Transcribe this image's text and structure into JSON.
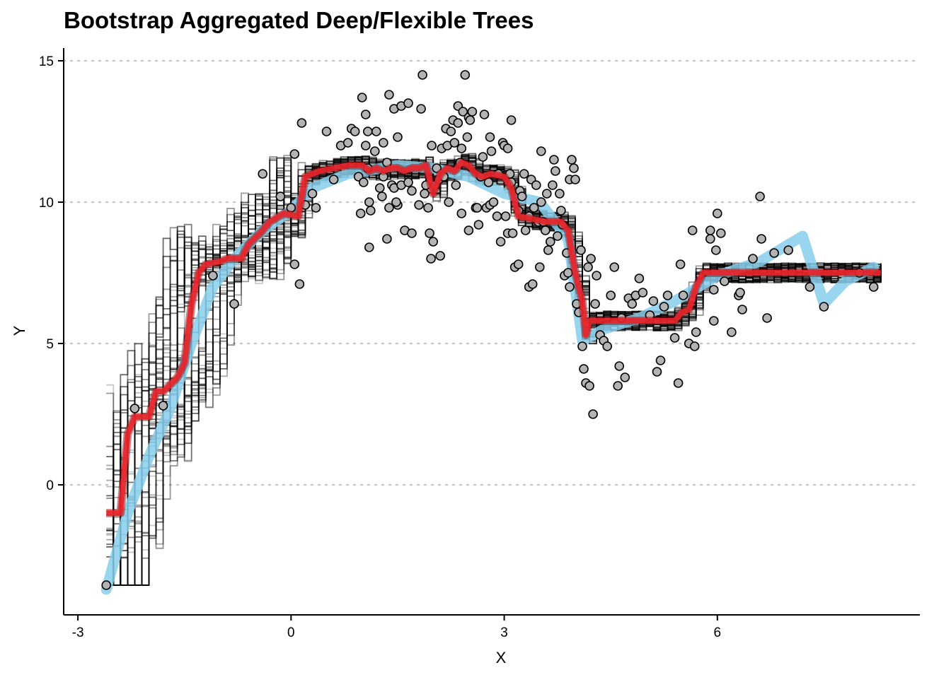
{
  "chart_data": {
    "type": "scatter",
    "title": "Bootstrap Aggregated Deep/Flexible Trees",
    "xlabel": "X",
    "ylabel": "Y",
    "xlim": [
      -3.2,
      8.85
    ],
    "ylim": [
      -4.6,
      15.45
    ],
    "x_ticks": [
      -3,
      0,
      3,
      6
    ],
    "y_ticks": [
      0,
      5,
      10,
      15
    ],
    "grid": "horizontal-dotted",
    "colors": {
      "points_fill": "#b3b3b3",
      "points_stroke": "#000000",
      "true_function": "#87ceeb",
      "bagged_mean": "#e8252b",
      "bootstrap_trees": "#000000",
      "grid": "#c8c8c8"
    },
    "bootstrap_tree_count": 50,
    "true_function_points": [
      [
        -2.6,
        -3.7
      ],
      [
        -2.3,
        -1.0
      ],
      [
        -2.0,
        1.0
      ],
      [
        -1.7,
        2.7
      ],
      [
        -1.4,
        5.0
      ],
      [
        -1.1,
        7.0
      ],
      [
        -0.8,
        8.0
      ],
      [
        -0.4,
        9.0
      ],
      [
        0.0,
        9.7
      ],
      [
        0.3,
        10.5
      ],
      [
        0.8,
        11.0
      ],
      [
        1.5,
        11.3
      ],
      [
        2.0,
        11.2
      ],
      [
        2.5,
        10.9
      ],
      [
        3.0,
        10.3
      ],
      [
        3.5,
        10.0
      ],
      [
        3.9,
        8.7
      ],
      [
        4.1,
        5.1
      ],
      [
        4.4,
        5.5
      ],
      [
        4.9,
        5.9
      ],
      [
        5.4,
        6.5
      ],
      [
        6.0,
        7.4
      ],
      [
        6.6,
        7.9
      ],
      [
        7.2,
        8.8
      ],
      [
        7.5,
        6.4
      ],
      [
        7.8,
        7.2
      ],
      [
        8.2,
        7.7
      ]
    ],
    "bagged_mean_points": [
      [
        -2.6,
        -1.0
      ],
      [
        -2.4,
        -1.0
      ],
      [
        -2.3,
        1.8
      ],
      [
        -2.2,
        2.4
      ],
      [
        -2.0,
        2.4
      ],
      [
        -1.9,
        3.3
      ],
      [
        -1.8,
        3.3
      ],
      [
        -1.6,
        3.8
      ],
      [
        -1.5,
        4.3
      ],
      [
        -1.4,
        6.4
      ],
      [
        -1.3,
        7.5
      ],
      [
        -1.2,
        7.8
      ],
      [
        -1.0,
        7.9
      ],
      [
        -0.9,
        8.0
      ],
      [
        -0.7,
        8.0
      ],
      [
        -0.6,
        8.5
      ],
      [
        -0.4,
        9.0
      ],
      [
        -0.3,
        9.3
      ],
      [
        -0.1,
        9.6
      ],
      [
        0.1,
        9.5
      ],
      [
        0.2,
        10.9
      ],
      [
        0.4,
        11.1
      ],
      [
        0.6,
        11.2
      ],
      [
        0.8,
        11.3
      ],
      [
        1.0,
        11.3
      ],
      [
        1.1,
        11.1
      ],
      [
        1.2,
        11.2
      ],
      [
        1.3,
        11.1
      ],
      [
        1.4,
        11.2
      ],
      [
        1.5,
        11.2
      ],
      [
        1.6,
        11.1
      ],
      [
        1.7,
        11.2
      ],
      [
        1.8,
        11.2
      ],
      [
        1.9,
        11.3
      ],
      [
        2.0,
        10.3
      ],
      [
        2.1,
        11.0
      ],
      [
        2.2,
        11.2
      ],
      [
        2.3,
        11.1
      ],
      [
        2.4,
        11.4
      ],
      [
        2.5,
        11.3
      ],
      [
        2.6,
        11.0
      ],
      [
        2.7,
        10.9
      ],
      [
        2.8,
        11.0
      ],
      [
        3.0,
        10.9
      ],
      [
        3.1,
        10.5
      ],
      [
        3.2,
        9.5
      ],
      [
        3.4,
        9.4
      ],
      [
        3.6,
        9.3
      ],
      [
        3.8,
        9.3
      ],
      [
        3.9,
        9.0
      ],
      [
        4.0,
        7.5
      ],
      [
        4.1,
        6.5
      ],
      [
        4.15,
        5.3
      ],
      [
        4.2,
        5.8
      ],
      [
        4.4,
        5.8
      ],
      [
        4.6,
        5.8
      ],
      [
        4.8,
        5.8
      ],
      [
        5.0,
        5.8
      ],
      [
        5.2,
        5.8
      ],
      [
        5.4,
        5.8
      ],
      [
        5.5,
        6.1
      ],
      [
        5.6,
        6.2
      ],
      [
        5.7,
        7.0
      ],
      [
        5.8,
        7.5
      ],
      [
        6.0,
        7.5
      ],
      [
        6.3,
        7.5
      ],
      [
        6.6,
        7.5
      ],
      [
        7.0,
        7.5
      ],
      [
        7.5,
        7.5
      ],
      [
        8.0,
        7.5
      ],
      [
        8.3,
        7.5
      ]
    ],
    "observations": [
      [
        -2.6,
        -3.55
      ],
      [
        -2.2,
        2.7
      ],
      [
        -1.8,
        2.8
      ],
      [
        -1.1,
        7.4
      ],
      [
        -0.8,
        6.4
      ],
      [
        -0.4,
        11.0
      ],
      [
        -0.15,
        10.2
      ],
      [
        0.05,
        11.7
      ],
      [
        0.0,
        9.8
      ],
      [
        0.05,
        7.8
      ],
      [
        0.2,
        9.9
      ],
      [
        0.3,
        10.3
      ],
      [
        0.15,
        12.8
      ],
      [
        0.12,
        7.1
      ],
      [
        0.35,
        9.8
      ],
      [
        0.5,
        12.5
      ],
      [
        0.6,
        10.8
      ],
      [
        0.7,
        12.0
      ],
      [
        0.8,
        12.1
      ],
      [
        0.85,
        12.6
      ],
      [
        0.9,
        12.5
      ],
      [
        0.95,
        10.9
      ],
      [
        0.98,
        9.6
      ],
      [
        1.0,
        13.7
      ],
      [
        1.02,
        10.7
      ],
      [
        1.05,
        13.1
      ],
      [
        1.05,
        12.0
      ],
      [
        1.08,
        12.5
      ],
      [
        1.08,
        11.2
      ],
      [
        1.1,
        10.0
      ],
      [
        1.12,
        9.7
      ],
      [
        1.1,
        8.4
      ],
      [
        1.18,
        11.8
      ],
      [
        1.2,
        12.5
      ],
      [
        1.25,
        10.5
      ],
      [
        1.28,
        10.2
      ],
      [
        1.3,
        12.1
      ],
      [
        1.3,
        10.9
      ],
      [
        1.35,
        11.4
      ],
      [
        1.38,
        9.8
      ],
      [
        1.42,
        10.6
      ],
      [
        1.45,
        10.5
      ],
      [
        1.35,
        8.7
      ],
      [
        1.38,
        13.8
      ],
      [
        1.45,
        13.3
      ],
      [
        1.5,
        12.3
      ],
      [
        1.55,
        10.6
      ],
      [
        1.55,
        13.4
      ],
      [
        1.5,
        9.9
      ],
      [
        1.48,
        10.0
      ],
      [
        1.6,
        9.0
      ],
      [
        1.65,
        13.5
      ],
      [
        1.65,
        10.7
      ],
      [
        1.7,
        10.4
      ],
      [
        1.7,
        8.9
      ],
      [
        1.8,
        9.9
      ],
      [
        1.83,
        13.3
      ],
      [
        1.85,
        14.5
      ],
      [
        1.88,
        10.3
      ],
      [
        1.9,
        10.6
      ],
      [
        1.93,
        9.8
      ],
      [
        1.95,
        8.9
      ],
      [
        1.97,
        8.0
      ],
      [
        1.98,
        12.0
      ],
      [
        2.0,
        8.6
      ],
      [
        2.02,
        10.6
      ],
      [
        2.05,
        11.2
      ],
      [
        2.08,
        10.8
      ],
      [
        2.1,
        8.1
      ],
      [
        2.12,
        11.9
      ],
      [
        2.15,
        10.9
      ],
      [
        2.18,
        12.6
      ],
      [
        2.2,
        12.0
      ],
      [
        2.22,
        10.0
      ],
      [
        2.25,
        12.5
      ],
      [
        2.28,
        12.9
      ],
      [
        2.3,
        12.1
      ],
      [
        2.32,
        10.6
      ],
      [
        2.35,
        13.4
      ],
      [
        2.35,
        12.8
      ],
      [
        2.38,
        11.4
      ],
      [
        2.4,
        9.6
      ],
      [
        2.4,
        11.9
      ],
      [
        2.42,
        13.2
      ],
      [
        2.45,
        14.5
      ],
      [
        2.48,
        12.3
      ],
      [
        2.5,
        13.0
      ],
      [
        2.52,
        12.9
      ],
      [
        2.5,
        9.0
      ],
      [
        2.55,
        13.2
      ],
      [
        2.6,
        9.8
      ],
      [
        2.62,
        9.8
      ],
      [
        2.64,
        9.2
      ],
      [
        2.67,
        10.9
      ],
      [
        2.7,
        11.6
      ],
      [
        2.72,
        13.1
      ],
      [
        2.75,
        9.8
      ],
      [
        2.78,
        10.7
      ],
      [
        2.8,
        9.9
      ],
      [
        2.8,
        12.3
      ],
      [
        2.82,
        11.8
      ],
      [
        2.85,
        10.0
      ],
      [
        2.9,
        9.5
      ],
      [
        2.92,
        11.0
      ],
      [
        2.95,
        8.6
      ],
      [
        2.98,
        12.1
      ],
      [
        3.0,
        12.0
      ],
      [
        3.02,
        9.5
      ],
      [
        3.05,
        8.9
      ],
      [
        3.05,
        11.9
      ],
      [
        3.08,
        11.0
      ],
      [
        3.1,
        12.9
      ],
      [
        3.1,
        10.7
      ],
      [
        3.12,
        8.9
      ],
      [
        3.15,
        7.7
      ],
      [
        3.2,
        9.7
      ],
      [
        3.2,
        7.8
      ],
      [
        3.22,
        10.4
      ],
      [
        3.25,
        10.2
      ],
      [
        3.28,
        11.0
      ],
      [
        3.3,
        9.0
      ],
      [
        3.35,
        9.5
      ],
      [
        3.35,
        7.0
      ],
      [
        3.38,
        10.8
      ],
      [
        3.4,
        7.1
      ],
      [
        3.42,
        9.8
      ],
      [
        3.45,
        10.6
      ],
      [
        3.48,
        9.3
      ],
      [
        3.5,
        7.7
      ],
      [
        3.52,
        10.0
      ],
      [
        3.52,
        11.8
      ],
      [
        3.55,
        9.3
      ],
      [
        3.58,
        9.0
      ],
      [
        3.6,
        10.3
      ],
      [
        3.62,
        8.3
      ],
      [
        3.65,
        8.6
      ],
      [
        3.68,
        10.6
      ],
      [
        3.7,
        11.5
      ],
      [
        3.72,
        11.1
      ],
      [
        3.75,
        8.8
      ],
      [
        3.78,
        10.3
      ],
      [
        3.8,
        9.7
      ],
      [
        3.82,
        9.2
      ],
      [
        3.85,
        7.4
      ],
      [
        3.88,
        8.2
      ],
      [
        3.9,
        7.5
      ],
      [
        3.92,
        10.8
      ],
      [
        3.92,
        7.0
      ],
      [
        3.95,
        11.5
      ],
      [
        3.98,
        11.2
      ],
      [
        4.0,
        10.8
      ],
      [
        4.02,
        6.4
      ],
      [
        4.05,
        6.1
      ],
      [
        4.08,
        8.3
      ],
      [
        4.1,
        4.9
      ],
      [
        4.12,
        4.1
      ],
      [
        4.15,
        3.6
      ],
      [
        4.18,
        7.7
      ],
      [
        4.2,
        3.5
      ],
      [
        4.22,
        8.0
      ],
      [
        4.25,
        2.5
      ],
      [
        4.28,
        6.4
      ],
      [
        4.3,
        7.4
      ],
      [
        4.35,
        5.3
      ],
      [
        4.4,
        5.1
      ],
      [
        4.45,
        4.9
      ],
      [
        4.5,
        6.7
      ],
      [
        4.55,
        7.7
      ],
      [
        4.6,
        3.5
      ],
      [
        4.62,
        4.2
      ],
      [
        4.65,
        5.9
      ],
      [
        4.7,
        3.8
      ],
      [
        4.75,
        6.6
      ],
      [
        4.8,
        6.4
      ],
      [
        4.85,
        6.7
      ],
      [
        4.9,
        7.3
      ],
      [
        4.95,
        6.8
      ],
      [
        5.05,
        6.0
      ],
      [
        5.1,
        6.5
      ],
      [
        5.15,
        4.0
      ],
      [
        5.2,
        4.4
      ],
      [
        5.25,
        6.3
      ],
      [
        5.3,
        6.7
      ],
      [
        5.4,
        5.2
      ],
      [
        5.45,
        3.6
      ],
      [
        5.48,
        7.8
      ],
      [
        5.52,
        6.7
      ],
      [
        5.6,
        5.0
      ],
      [
        5.65,
        9.0
      ],
      [
        5.68,
        4.9
      ],
      [
        5.7,
        5.4
      ],
      [
        5.9,
        9.0
      ],
      [
        5.9,
        8.7
      ],
      [
        5.95,
        5.8
      ],
      [
        5.95,
        6.9
      ],
      [
        5.98,
        8.3
      ],
      [
        6.0,
        9.6
      ],
      [
        6.05,
        8.9
      ],
      [
        6.1,
        7.2
      ],
      [
        6.2,
        5.4
      ],
      [
        6.3,
        6.7
      ],
      [
        6.32,
        6.8
      ],
      [
        6.35,
        6.2
      ],
      [
        6.5,
        8.0
      ],
      [
        6.6,
        10.2
      ],
      [
        6.62,
        8.7
      ],
      [
        6.7,
        5.9
      ],
      [
        6.8,
        8.2
      ],
      [
        7.0,
        8.3
      ],
      [
        7.3,
        7.0
      ],
      [
        7.5,
        6.3
      ],
      [
        8.0,
        7.5
      ],
      [
        8.2,
        7.0
      ]
    ]
  }
}
